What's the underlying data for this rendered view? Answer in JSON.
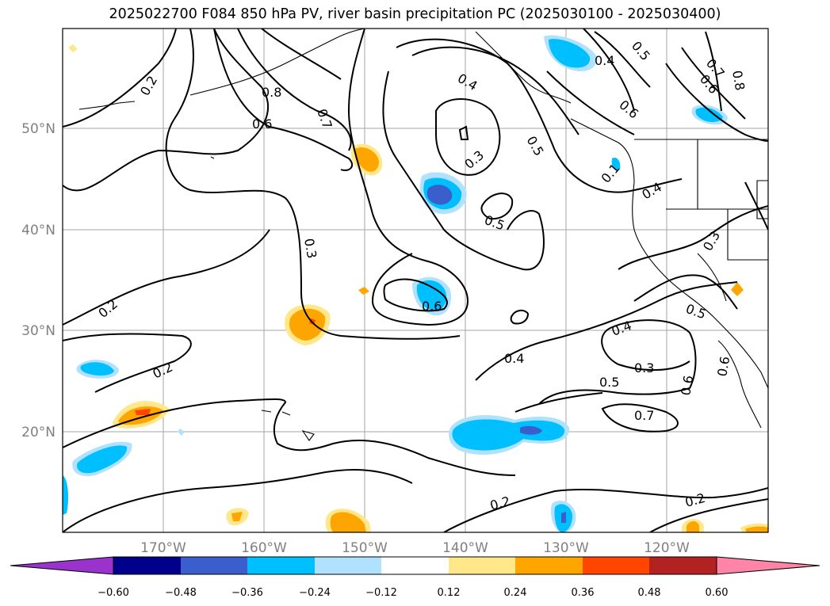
{
  "title": "2025022700 F084 850 hPa PV, river basin precipitation PC (2025030100 - 2025030400)",
  "lat_labels": [
    "50°N",
    "40°N",
    "30°N",
    "20°N"
  ],
  "lon_labels": [
    "170°W",
    "160°W",
    "150°W",
    "140°W",
    "130°W",
    "120°W"
  ],
  "contour_labels": [
    "0.2",
    "0.8",
    "0.7",
    "0.6",
    "0.4",
    "0.3",
    "0.5",
    "0.5",
    "0.4",
    "0.6",
    "0.5",
    "0.7",
    "0.8",
    "0.6",
    "0.1",
    "0.4",
    "0.3",
    "0.3",
    "0.2",
    "0.6",
    "0.2",
    "0.4",
    "0.3",
    "0.5",
    "0.7",
    "0.6",
    "0.5",
    "0.2",
    "0.2",
    "0.6"
  ],
  "colorbar": {
    "ticks": [
      "−0.60",
      "−0.48",
      "−0.36",
      "−0.24",
      "−0.12",
      "0.12",
      "0.24",
      "0.36",
      "0.48",
      "0.60"
    ],
    "colors": [
      "#9933cc",
      "#00008b",
      "#3a5fcd",
      "#00bfff",
      "#b0e2ff",
      "#ffffff",
      "#ffe78a",
      "#ffa500",
      "#ff4500",
      "#b22222",
      "#ff85a8"
    ]
  },
  "map": {
    "extent": {
      "lon": [
        -180,
        -110
      ],
      "lat": [
        10,
        60
      ]
    },
    "grid": true,
    "fields": [
      "850 hPa PV (black contours)",
      "river basin precipitation PC (shaded)"
    ]
  }
}
